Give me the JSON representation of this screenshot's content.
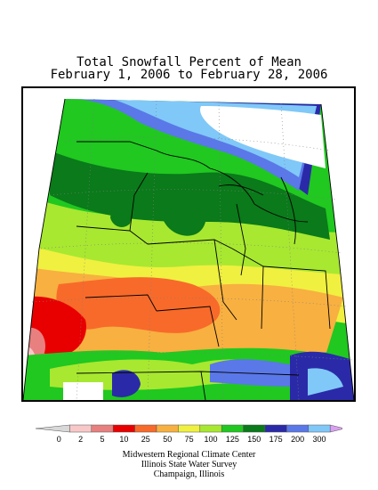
{
  "title": {
    "line1": "Total Snowfall Percent of Mean",
    "line2": "February 1, 2006 to February 28, 2006"
  },
  "legend": {
    "bins": [
      {
        "label": "0",
        "color": "#d8d8d8"
      },
      {
        "label": "2",
        "color": "#f8c8c8"
      },
      {
        "label": "5",
        "color": "#e88080"
      },
      {
        "label": "10",
        "color": "#e80000"
      },
      {
        "label": "25",
        "color": "#f86a2a"
      },
      {
        "label": "50",
        "color": "#f8b040"
      },
      {
        "label": "75",
        "color": "#f0f040"
      },
      {
        "label": "100",
        "color": "#a8e830"
      },
      {
        "label": "125",
        "color": "#20c820"
      },
      {
        "label": "150",
        "color": "#0a7a1a"
      },
      {
        "label": "175",
        "color": "#2a2aa8"
      },
      {
        "label": "200",
        "color": "#5a78e8"
      },
      {
        "label": "300",
        "color": "#80c8f8"
      },
      {
        "label": "",
        "color": "#d8a0f0"
      }
    ]
  },
  "credits": {
    "line1": "Midwestern Regional Climate Center",
    "line2": "Illinois State Water Survey",
    "line3": "Champaign, Illinois"
  }
}
